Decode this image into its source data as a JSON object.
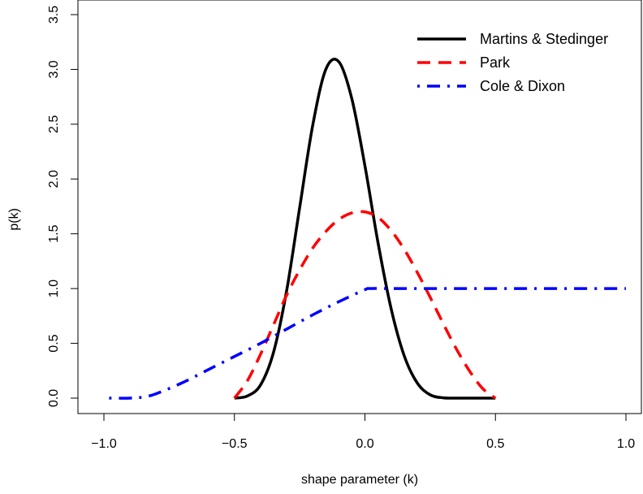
{
  "chart_data": {
    "type": "line",
    "title": "",
    "xlabel": "shape parameter (k)",
    "ylabel": "p(k)",
    "xlim": [
      -1.05,
      1.05
    ],
    "ylim": [
      -0.14,
      3.6
    ],
    "xticks": [
      -1.0,
      -0.5,
      0.0,
      0.5,
      1.0
    ],
    "xtick_labels": [
      "−1.0",
      "−0.5",
      "0.0",
      "0.5",
      "1.0"
    ],
    "yticks": [
      0.0,
      0.5,
      1.0,
      1.5,
      2.0,
      2.5,
      3.0,
      3.5
    ],
    "ytick_labels": [
      "0.0",
      "0.5",
      "1.0",
      "1.5",
      "2.0",
      "2.5",
      "3.0",
      "3.5"
    ],
    "grid": false,
    "legend_position": "top-right",
    "series": [
      {
        "name": "Martins & Stedinger",
        "color": "#000000",
        "style": "solid",
        "x": [
          -0.5,
          -0.45,
          -0.4,
          -0.35,
          -0.3,
          -0.25,
          -0.2,
          -0.15,
          -0.1,
          -0.05,
          0.0,
          0.05,
          0.1,
          0.15,
          0.2,
          0.25,
          0.3,
          0.35,
          0.4,
          0.45,
          0.5
        ],
        "y": [
          0.0,
          0.02,
          0.12,
          0.42,
          0.98,
          1.74,
          2.49,
          3.0,
          3.07,
          2.73,
          2.12,
          1.42,
          0.82,
          0.39,
          0.14,
          0.03,
          0.003,
          0.0,
          0.0,
          0.0,
          0.0
        ]
      },
      {
        "name": "Park",
        "color": "#ff0000",
        "style": "dashed",
        "x": [
          -0.5,
          -0.45,
          -0.4,
          -0.35,
          -0.3,
          -0.25,
          -0.2,
          -0.15,
          -0.1,
          -0.05,
          0.0,
          0.05,
          0.1,
          0.15,
          0.2,
          0.25,
          0.3,
          0.35,
          0.4,
          0.45,
          0.5
        ],
        "y": [
          0.0,
          0.16,
          0.4,
          0.67,
          0.94,
          1.17,
          1.37,
          1.52,
          1.63,
          1.69,
          1.7,
          1.65,
          1.53,
          1.36,
          1.15,
          0.92,
          0.68,
          0.45,
          0.25,
          0.09,
          0.0
        ]
      },
      {
        "name": "Cole & Dixon",
        "color": "#0000ff",
        "style": "dotdash",
        "x": [
          -0.98,
          -0.9,
          -0.85,
          -0.8,
          -0.7,
          -0.6,
          -0.5,
          -0.4,
          -0.3,
          -0.2,
          -0.1,
          0.0,
          0.02,
          0.1,
          0.3,
          0.5,
          0.7,
          1.0
        ],
        "y": [
          0.0,
          0.0,
          0.01,
          0.04,
          0.14,
          0.26,
          0.38,
          0.5,
          0.63,
          0.76,
          0.88,
          0.99,
          1.0,
          1.0,
          1.0,
          1.0,
          1.0,
          1.0
        ]
      }
    ]
  }
}
